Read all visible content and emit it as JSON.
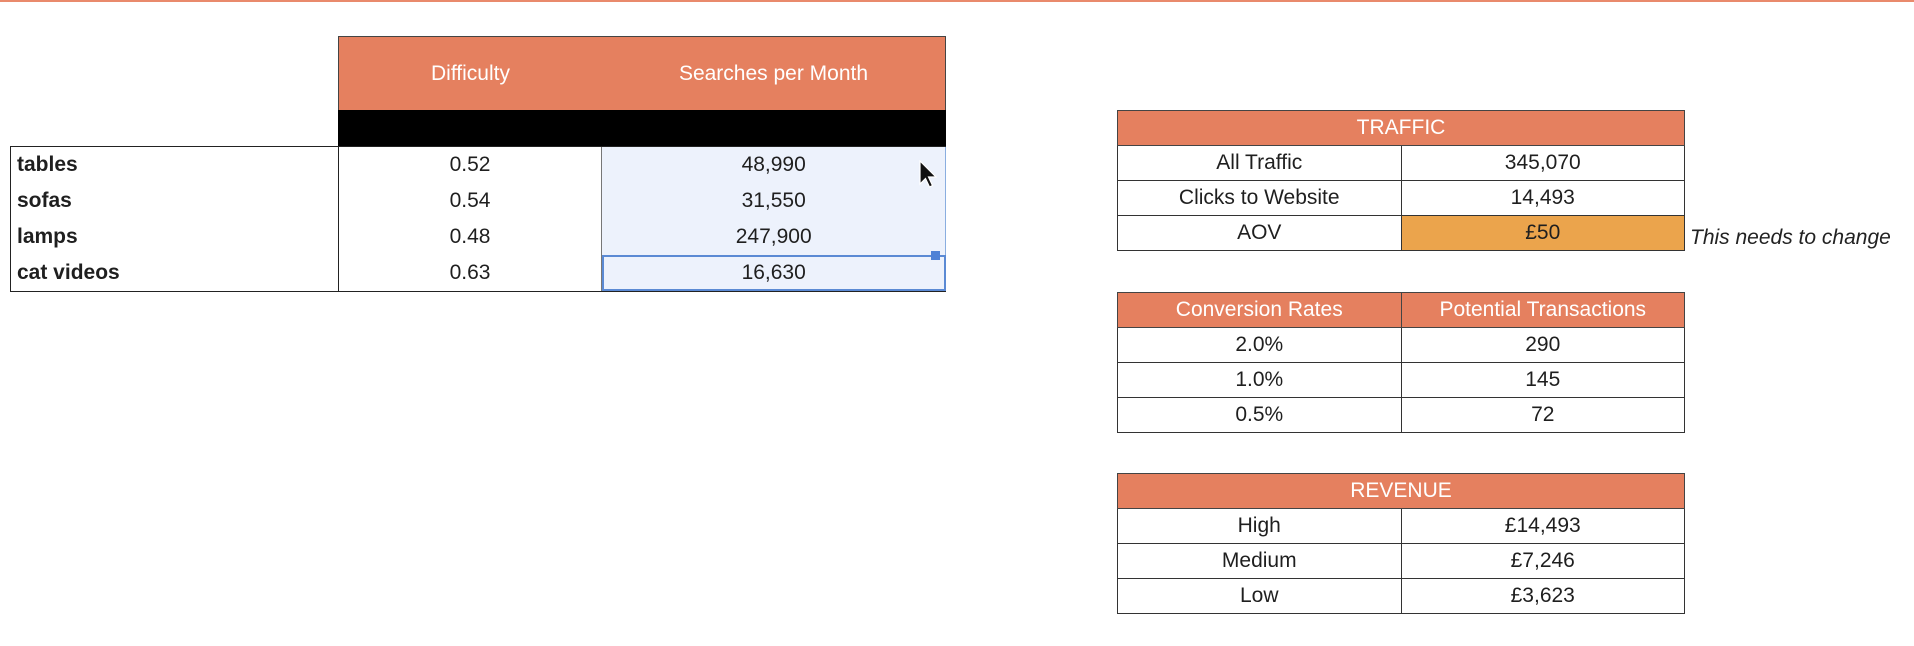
{
  "keywords": {
    "columns": {
      "difficulty": "Difficulty",
      "searches": "Searches per Month"
    },
    "rows": [
      {
        "name": "tables",
        "difficulty": "0.52",
        "searches": "48,990"
      },
      {
        "name": "sofas",
        "difficulty": "0.54",
        "searches": "31,550"
      },
      {
        "name": "lamps",
        "difficulty": "0.48",
        "searches": "247,900"
      },
      {
        "name": "cat videos",
        "difficulty": "0.63",
        "searches": "16,630"
      }
    ]
  },
  "traffic": {
    "title": "TRAFFIC",
    "rows": [
      {
        "label": "All Traffic",
        "value": "345,070"
      },
      {
        "label": "Clicks to Website",
        "value": "14,493"
      },
      {
        "label": "AOV",
        "value": "£50"
      }
    ],
    "note": "This needs to change"
  },
  "conversion": {
    "headers": [
      "Conversion Rates",
      "Potential Transactions"
    ],
    "rows": [
      {
        "rate": "2.0%",
        "transactions": "290"
      },
      {
        "rate": "1.0%",
        "transactions": "145"
      },
      {
        "rate": "0.5%",
        "transactions": "72"
      }
    ]
  },
  "revenue": {
    "title": "REVENUE",
    "rows": [
      {
        "label": "High",
        "value": "£14,493"
      },
      {
        "label": "Medium",
        "value": "£7,246"
      },
      {
        "label": "Low",
        "value": "£3,623"
      }
    ]
  },
  "colors": {
    "header": "#e5805f",
    "aov_highlight": "#eba44c",
    "selection": "#5b8ad4"
  },
  "icons": {
    "pointer": "mouse-pointer-icon"
  }
}
